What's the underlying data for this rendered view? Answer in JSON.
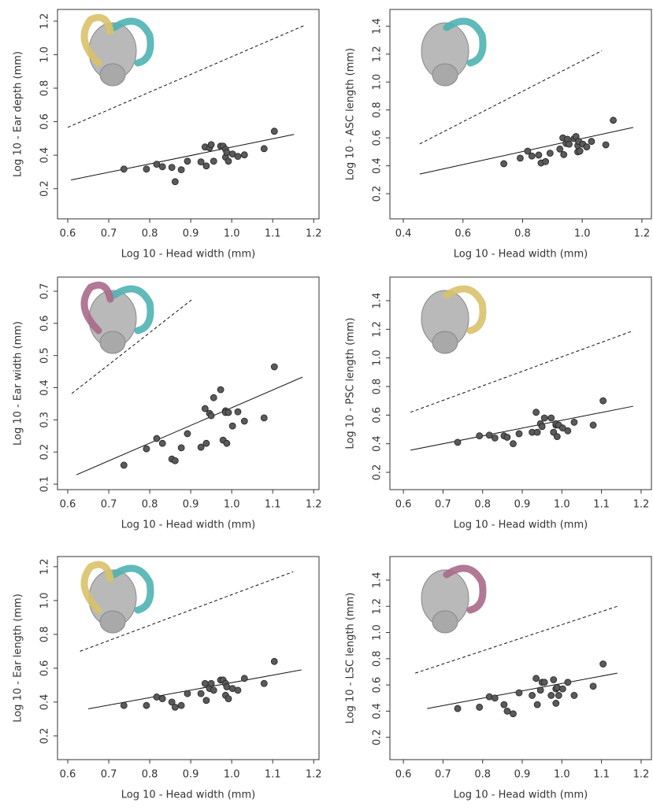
{
  "chart_data": [
    {
      "type": "scatter",
      "xlabel": "Log 10 - Head width (mm)",
      "ylabel": "Log 10 - Ear depth (mm)",
      "color": "#5a5a5a",
      "x": [
        0.737,
        0.792,
        0.817,
        0.831,
        0.854,
        0.862,
        0.877,
        0.892,
        0.925,
        0.935,
        0.938,
        0.946,
        0.95,
        0.956,
        0.973,
        0.979,
        0.985,
        0.985,
        0.988,
        0.992,
        1.002,
        1.015,
        1.031,
        1.079,
        1.104
      ],
      "y": [
        0.317,
        0.317,
        0.346,
        0.331,
        0.327,
        0.242,
        0.313,
        0.364,
        0.36,
        0.449,
        0.336,
        0.444,
        0.463,
        0.364,
        0.454,
        0.454,
        0.435,
        0.388,
        0.416,
        0.364,
        0.407,
        0.393,
        0.402,
        0.439,
        0.543
      ],
      "lines": [
        {
          "style": "solid",
          "x": [
            0.608,
            1.152
          ],
          "y": [
            0.252,
            0.524
          ]
        },
        {
          "style": "dashed",
          "x": [
            0.6,
            1.175
          ],
          "y": [
            0.566,
            1.172
          ]
        }
      ],
      "xlim": [
        0.575,
        1.213
      ],
      "ylim": [
        0.02,
        1.27
      ],
      "xticks": [
        0.6,
        0.7,
        0.8,
        0.9,
        {
          "value": 1,
          "label": "1.0"
        },
        1.1,
        1.2
      ],
      "yticks": [
        0.2,
        0.4,
        0.6,
        0.8,
        {
          "value": 1,
          "label": "1.0"
        },
        1.2
      ]
    },
    {
      "type": "scatter",
      "xlabel": "Log 10 - Head width (mm)",
      "ylabel": "Log 10 - ASC length (mm)",
      "color": "#5a5a5a",
      "x": [
        0.737,
        0.792,
        0.817,
        0.831,
        0.854,
        0.862,
        0.877,
        0.892,
        0.925,
        0.935,
        0.938,
        0.946,
        0.95,
        0.956,
        0.973,
        0.979,
        0.985,
        0.985,
        0.988,
        0.992,
        1.002,
        1.015,
        1.031,
        1.079,
        1.104
      ],
      "y": [
        0.415,
        0.455,
        0.505,
        0.47,
        0.477,
        0.42,
        0.43,
        0.49,
        0.52,
        0.6,
        0.48,
        0.56,
        0.59,
        0.555,
        0.595,
        0.61,
        0.5,
        0.545,
        0.575,
        0.505,
        0.555,
        0.535,
        0.575,
        0.55,
        0.726
      ],
      "lines": [
        {
          "style": "solid",
          "x": [
            0.455,
            1.171
          ],
          "y": [
            0.341,
            0.675
          ]
        },
        {
          "style": "dashed",
          "x": [
            0.455,
            1.066
          ],
          "y": [
            0.557,
            1.224
          ]
        }
      ],
      "xlim": [
        0.355,
        1.232
      ],
      "ylim": [
        0.02,
        1.52
      ],
      "xticks": [
        0.4,
        0.6,
        0.8,
        {
          "value": 1,
          "label": "1.0"
        },
        1.2
      ],
      "yticks": [
        0.2,
        0.4,
        0.6,
        0.8,
        {
          "value": 1,
          "label": "1.0"
        },
        1.2,
        1.4
      ]
    },
    {
      "type": "scatter",
      "xlabel": "Log 10 - Head width (mm)",
      "ylabel": "Log 10 - Ear width (mm)",
      "color": "#5a5a5a",
      "x": [
        0.737,
        0.792,
        0.817,
        0.831,
        0.854,
        0.862,
        0.877,
        0.892,
        0.925,
        0.935,
        0.938,
        0.946,
        0.95,
        0.956,
        0.973,
        0.979,
        0.985,
        0.985,
        0.988,
        0.992,
        1.002,
        1.015,
        1.031,
        1.079,
        1.104
      ],
      "y": [
        0.159,
        0.21,
        0.242,
        0.227,
        0.178,
        0.173,
        0.213,
        0.257,
        0.215,
        0.335,
        0.227,
        0.32,
        0.313,
        0.369,
        0.394,
        0.237,
        0.328,
        0.323,
        0.227,
        0.323,
        0.281,
        0.325,
        0.296,
        0.306,
        0.465
      ],
      "lines": [
        {
          "style": "solid",
          "x": [
            0.621,
            1.173
          ],
          "y": [
            0.129,
            0.433
          ]
        },
        {
          "style": "dashed",
          "x": [
            0.61,
            0.902
          ],
          "y": [
            0.382,
            0.673
          ]
        }
      ],
      "xlim": [
        0.575,
        1.213
      ],
      "ylim": [
        0.083,
        0.744
      ],
      "xticks": [
        0.6,
        0.7,
        0.8,
        0.9,
        {
          "value": 1,
          "label": "1.0"
        },
        1.1,
        1.2
      ],
      "yticks": [
        0.1,
        0.2,
        0.3,
        0.4,
        0.5,
        0.6,
        0.7
      ]
    },
    {
      "type": "scatter",
      "xlabel": "Log 10 - Head width (mm)",
      "ylabel": "Log 10 - PSC length (mm)",
      "color": "#5a5a5a",
      "x": [
        0.737,
        0.792,
        0.817,
        0.831,
        0.854,
        0.862,
        0.877,
        0.892,
        0.925,
        0.935,
        0.938,
        0.946,
        0.95,
        0.956,
        0.973,
        0.979,
        0.985,
        0.985,
        0.988,
        0.992,
        1.002,
        1.015,
        1.031,
        1.079,
        1.104
      ],
      "y": [
        0.41,
        0.455,
        0.46,
        0.44,
        0.455,
        0.445,
        0.4,
        0.47,
        0.48,
        0.62,
        0.48,
        0.54,
        0.52,
        0.58,
        0.58,
        0.48,
        0.53,
        0.54,
        0.45,
        0.53,
        0.51,
        0.49,
        0.55,
        0.53,
        0.7
      ],
      "lines": [
        {
          "style": "solid",
          "x": [
            0.618,
            1.18
          ],
          "y": [
            0.355,
            0.662
          ]
        },
        {
          "style": "dashed",
          "x": [
            0.618,
            1.18
          ],
          "y": [
            0.62,
            1.19
          ]
        }
      ],
      "xlim": [
        0.566,
        1.226
      ],
      "ylim": [
        0.079,
        1.565
      ],
      "xticks": [
        0.6,
        0.7,
        0.8,
        0.9,
        {
          "value": 1,
          "label": "1.0"
        },
        1.1,
        1.2
      ],
      "yticks": [
        0.2,
        0.4,
        0.6,
        0.8,
        {
          "value": 1,
          "label": "1.0"
        },
        1.2,
        1.4
      ]
    },
    {
      "type": "scatter",
      "xlabel": "Log 10 - Head width (mm)",
      "ylabel": "Log 10 - Ear length (mm)",
      "color": "#5a5a5a",
      "x": [
        0.737,
        0.792,
        0.817,
        0.831,
        0.854,
        0.862,
        0.877,
        0.892,
        0.925,
        0.935,
        0.938,
        0.946,
        0.95,
        0.956,
        0.973,
        0.979,
        0.985,
        0.985,
        0.988,
        0.992,
        1.002,
        1.015,
        1.031,
        1.079,
        1.104
      ],
      "y": [
        0.38,
        0.38,
        0.43,
        0.42,
        0.4,
        0.37,
        0.38,
        0.45,
        0.45,
        0.51,
        0.41,
        0.48,
        0.51,
        0.47,
        0.53,
        0.53,
        0.44,
        0.51,
        0.49,
        0.42,
        0.48,
        0.47,
        0.54,
        0.51,
        0.64
      ],
      "lines": [
        {
          "style": "solid",
          "x": [
            0.65,
            1.17
          ],
          "y": [
            0.36,
            0.59
          ]
        },
        {
          "style": "dashed",
          "x": [
            0.63,
            1.15
          ],
          "y": [
            0.7,
            1.17
          ]
        }
      ],
      "xlim": [
        0.575,
        1.213
      ],
      "ylim": [
        0.06,
        1.26
      ],
      "xticks": [
        0.6,
        0.7,
        0.8,
        0.9,
        {
          "value": 1,
          "label": "1.0"
        },
        1.1,
        1.2
      ],
      "yticks": [
        0.2,
        0.4,
        0.6,
        0.8,
        {
          "value": 1,
          "label": "1.0"
        },
        1.2
      ]
    },
    {
      "type": "scatter",
      "xlabel": "Log 10 - Head width (mm)",
      "ylabel": "Log 10 - LSC length (mm)",
      "color": "#5a5a5a",
      "x": [
        0.737,
        0.792,
        0.817,
        0.831,
        0.854,
        0.862,
        0.877,
        0.892,
        0.925,
        0.935,
        0.938,
        0.946,
        0.95,
        0.956,
        0.973,
        0.979,
        0.985,
        0.985,
        0.988,
        0.992,
        1.002,
        1.015,
        1.031,
        1.079,
        1.104
      ],
      "y": [
        0.42,
        0.43,
        0.51,
        0.5,
        0.45,
        0.4,
        0.38,
        0.54,
        0.52,
        0.65,
        0.45,
        0.56,
        0.62,
        0.62,
        0.52,
        0.64,
        0.57,
        0.46,
        0.58,
        0.52,
        0.57,
        0.62,
        0.52,
        0.59,
        0.76
      ],
      "lines": [
        {
          "style": "solid",
          "x": [
            0.66,
            1.14
          ],
          "y": [
            0.42,
            0.69
          ]
        },
        {
          "style": "dashed",
          "x": [
            0.63,
            1.14
          ],
          "y": [
            0.69,
            1.2
          ]
        }
      ],
      "xlim": [
        0.566,
        1.226
      ],
      "ylim": [
        0.03,
        1.58
      ],
      "xticks": [
        0.6,
        0.7,
        0.8,
        0.9,
        {
          "value": 1,
          "label": "1.0"
        },
        1.1,
        1.2
      ],
      "yticks": [
        0.2,
        0.4,
        0.6,
        0.8,
        {
          "value": 1,
          "label": "1.0"
        },
        1.2,
        1.4
      ]
    }
  ]
}
